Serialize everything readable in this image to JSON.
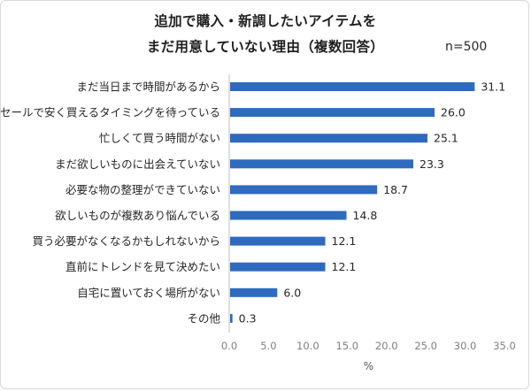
{
  "chart_data": {
    "type": "bar",
    "orientation": "horizontal",
    "title_lines": [
      "追加で購入・新調したいアイテムを",
      "まだ用意していない理由（複数回答）"
    ],
    "sample_label": "n=500",
    "categories": [
      "まだ当日まで時間があるから",
      "セールで安く買えるタイミングを待っている",
      "忙しくて買う時間がない",
      "まだ欲しいものに出会えていない",
      "必要な物の整理ができていない",
      "欲しいものが複数あり悩んでいる",
      "買う必要がなくなるかもしれないから",
      "直前にトレンドを見て決めたい",
      "自宅に置いておく場所がない",
      "その他"
    ],
    "values": [
      31.1,
      26.0,
      25.1,
      23.3,
      18.7,
      14.8,
      12.1,
      12.1,
      6.0,
      0.3
    ],
    "value_labels": [
      "31.1",
      "26.0",
      "25.1",
      "23.3",
      "18.7",
      "14.8",
      "12.1",
      "12.1",
      "6.0",
      "0.3"
    ],
    "xlabel": "%",
    "xlim": [
      0,
      35
    ],
    "xticks": [
      "0.0",
      "5.0",
      "10.0",
      "15.0",
      "20.0",
      "25.0",
      "30.0",
      "35.0"
    ],
    "grid": false,
    "bar_color": "#2e6bbf"
  }
}
